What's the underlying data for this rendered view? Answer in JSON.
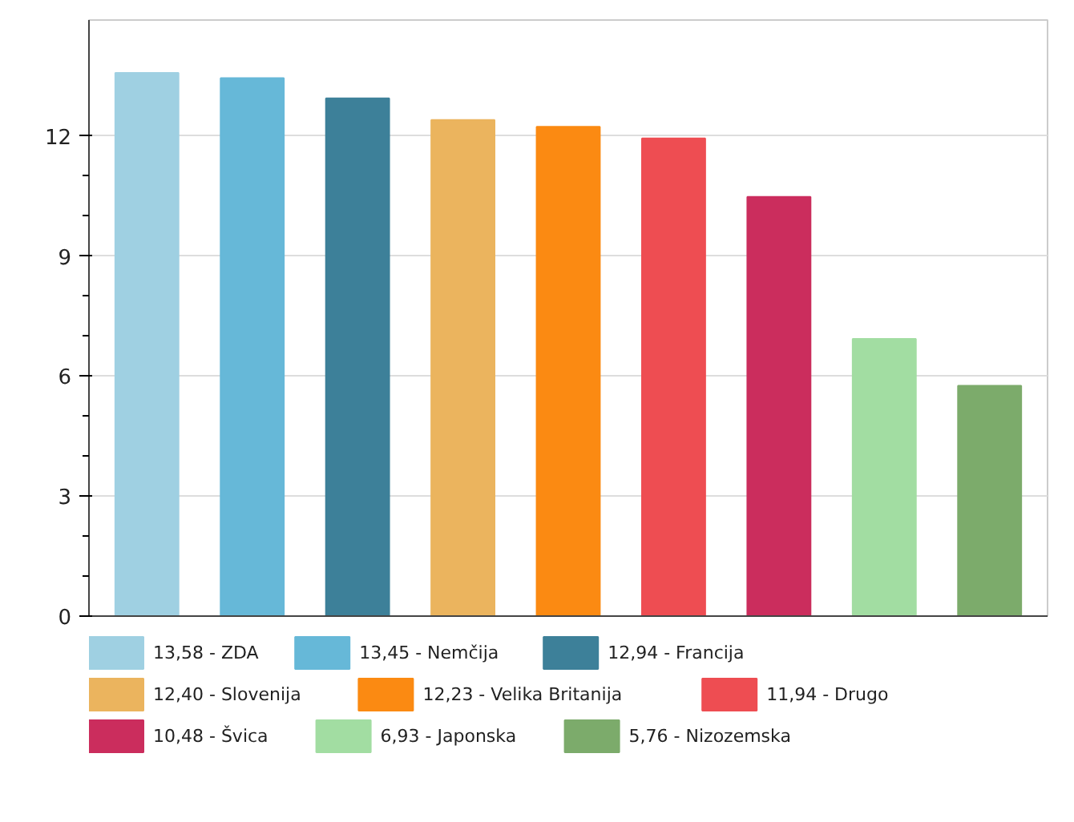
{
  "chart_data": {
    "type": "bar",
    "categories": [
      null,
      null,
      null,
      null,
      null,
      null,
      null,
      null,
      null
    ],
    "series": [
      {
        "name": "13,58 - ZDA",
        "color": "#9fd0e2",
        "values": [
          13.58,
          null,
          null,
          null,
          null,
          null,
          null,
          null,
          null
        ]
      },
      {
        "name": "13,45 - Nemčija",
        "color": "#66b8d8",
        "values": [
          null,
          13.45,
          null,
          null,
          null,
          null,
          null,
          null,
          null
        ]
      },
      {
        "name": "12,94 - Francija",
        "color": "#3d8099",
        "values": [
          null,
          null,
          12.94,
          null,
          null,
          null,
          null,
          null,
          null
        ]
      },
      {
        "name": "12,40 - Slovenija",
        "color": "#ebb45e",
        "values": [
          null,
          null,
          null,
          12.4,
          null,
          null,
          null,
          null,
          null
        ]
      },
      {
        "name": "12,23 - Velika Britanija",
        "color": "#fb8a12",
        "values": [
          null,
          null,
          null,
          null,
          12.23,
          null,
          null,
          null,
          null
        ]
      },
      {
        "name": "11,94 - Drugo",
        "color": "#ee4d52",
        "values": [
          null,
          null,
          null,
          null,
          null,
          11.94,
          null,
          null,
          null
        ]
      },
      {
        "name": "10,48 - Švica",
        "color": "#cb2d5d",
        "values": [
          null,
          null,
          null,
          null,
          null,
          null,
          10.48,
          null,
          null
        ]
      },
      {
        "name": "6,93 - Japonska",
        "color": "#a2dda2",
        "values": [
          null,
          null,
          null,
          null,
          null,
          null,
          null,
          6.93,
          null
        ]
      },
      {
        "name": "5,76 - Nizozemska",
        "color": "#7cab6b",
        "values": [
          null,
          null,
          null,
          null,
          null,
          null,
          null,
          null,
          5.76
        ]
      }
    ],
    "ylim": [
      0,
      14.9
    ],
    "yticks": [
      0,
      3,
      6,
      9,
      12
    ],
    "grid": "y",
    "legend": "bottom",
    "tick_labels": "y"
  }
}
